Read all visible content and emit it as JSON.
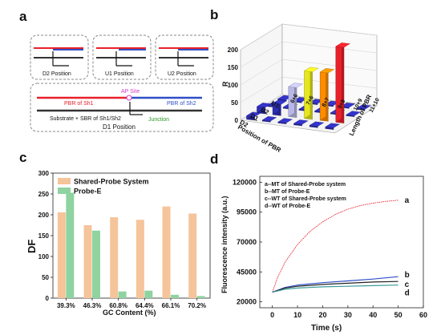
{
  "panel_labels": [
    "a",
    "b",
    "c",
    "d"
  ],
  "panel_a": {
    "boxes": [
      "D2 Position",
      "U1 Position",
      "U2 Position"
    ],
    "big_box": {
      "title": "D1 Position",
      "ap_site": "AP Site",
      "pbr_sh1": "PBR of Sh1",
      "pbr_sh2": "PBR of Sh2",
      "substrate": "Substrate + SBR of Sh1/Sh2",
      "junction": "Junction"
    }
  },
  "chart_data": [
    {
      "id": "b",
      "type": "bar",
      "title": "",
      "ylabel": "R",
      "xlabel": "Position of PBR",
      "zlabel": "Length of PBR",
      "x_categories": [
        "U1",
        "U2",
        "D1",
        "D2"
      ],
      "y_categories": [
        "11+10",
        "10+9",
        "9+8",
        "8+7",
        "7+6",
        "6+6"
      ],
      "z_ticks": [
        "0",
        "50",
        "100",
        "150",
        "200"
      ],
      "zlim": [
        0,
        200
      ],
      "bars": [
        {
          "x": "D1",
          "y": "11+10",
          "value": 215,
          "color": "#e8202a"
        },
        {
          "x": "D1",
          "y": "10+9",
          "value": 137,
          "color": "#ff8c00"
        },
        {
          "x": "D1",
          "y": "9+8",
          "value": 135,
          "color": "#e6e61e"
        },
        {
          "x": "D1",
          "y": "8+7",
          "value": 85,
          "color": "#b8b8e8"
        },
        {
          "x": "D1",
          "y": "7+6",
          "value": 32,
          "color": "#2d2db4"
        },
        {
          "x": "D1",
          "y": "6+6",
          "value": 18,
          "color": "#2d2db4"
        },
        {
          "x": "D2",
          "y": "11+10",
          "value": 5,
          "color": "#2d2db4"
        },
        {
          "x": "D2",
          "y": "10+9",
          "value": 4,
          "color": "#2d2db4"
        },
        {
          "x": "D2",
          "y": "9+8",
          "value": 4,
          "color": "#2d2db4"
        },
        {
          "x": "D2",
          "y": "8+7",
          "value": 3,
          "color": "#2d2db4"
        },
        {
          "x": "D2",
          "y": "7+6",
          "value": 3,
          "color": "#2d2db4"
        },
        {
          "x": "D2",
          "y": "6+6",
          "value": 10,
          "color": "#2d2db4"
        },
        {
          "x": "U2",
          "y": "11+10",
          "value": 3,
          "color": "#2d2db4"
        },
        {
          "x": "U2",
          "y": "10+9",
          "value": 3,
          "color": "#2d2db4"
        },
        {
          "x": "U2",
          "y": "9+8",
          "value": 3,
          "color": "#2d2db4"
        },
        {
          "x": "U2",
          "y": "8+7",
          "value": 3,
          "color": "#2d2db4"
        },
        {
          "x": "U2",
          "y": "7+6",
          "value": 3,
          "color": "#2d2db4"
        },
        {
          "x": "U2",
          "y": "6+6",
          "value": 3,
          "color": "#2d2db4"
        },
        {
          "x": "U1",
          "y": "11+10",
          "value": 3,
          "color": "#2d2db4"
        },
        {
          "x": "U1",
          "y": "10+9",
          "value": 3,
          "color": "#2d2db4"
        },
        {
          "x": "U1",
          "y": "9+8",
          "value": 3,
          "color": "#2d2db4"
        },
        {
          "x": "U1",
          "y": "8+7",
          "value": 3,
          "color": "#2d2db4"
        },
        {
          "x": "U1",
          "y": "7+6",
          "value": 3,
          "color": "#2d2db4"
        },
        {
          "x": "U1",
          "y": "6+6",
          "value": 3,
          "color": "#2d2db4"
        }
      ]
    },
    {
      "id": "c",
      "type": "bar",
      "title": "",
      "xlabel": "GC Content  (%)",
      "ylabel": "DF",
      "ylim": [
        0,
        300
      ],
      "yticks": [
        0,
        50,
        100,
        150,
        200,
        250,
        300
      ],
      "categories": [
        "39.3%",
        "46.3%",
        "60.8%",
        "64.4%",
        "66.1%",
        "70.2%"
      ],
      "legend_position": "top-left",
      "series": [
        {
          "name": "Shared-Probe System",
          "color": "#f5c49a",
          "values": [
            206,
            175,
            194,
            188,
            220,
            203
          ]
        },
        {
          "name": "Probe-E",
          "color": "#8ed3a0",
          "values": [
            253,
            162,
            16,
            18,
            8,
            5
          ]
        }
      ]
    },
    {
      "id": "d",
      "type": "line",
      "title": "",
      "xlabel": "Time (s)",
      "ylabel": "Fluorescence intensity (a.u.)",
      "xlim": [
        -5,
        60
      ],
      "ylim": [
        15000,
        125000
      ],
      "xticks": [
        0,
        10,
        20,
        30,
        40,
        50,
        60
      ],
      "yticks": [
        20000,
        45000,
        70000,
        95000,
        120000
      ],
      "ytick_labels": [
        "20000",
        "45000",
        "70000",
        "95000",
        "120000"
      ],
      "legend_position": "top-left",
      "series": [
        {
          "name": "a--MT of Shared-Probe system",
          "end_label": "a",
          "color": "#e8202a",
          "x": [
            0,
            2,
            5,
            10,
            15,
            20,
            25,
            30,
            35,
            40,
            45,
            50
          ],
          "y": [
            28000,
            40000,
            53000,
            68000,
            79000,
            87000,
            93000,
            97500,
            100500,
            102500,
            104000,
            105000
          ]
        },
        {
          "name": "b--MT of Probe-E",
          "end_label": "b",
          "color": "#2f4fc8",
          "x": [
            0,
            5,
            10,
            20,
            30,
            40,
            50
          ],
          "y": [
            28000,
            32000,
            34000,
            36000,
            37500,
            39000,
            41000
          ]
        },
        {
          "name": "c--WT of Shared-Probe system",
          "end_label": "c",
          "color": "#222222",
          "x": [
            0,
            5,
            10,
            20,
            30,
            40,
            50
          ],
          "y": [
            28000,
            31500,
            33000,
            34500,
            35500,
            36500,
            37000
          ]
        },
        {
          "name": "d--WT of Probe-E",
          "end_label": "d",
          "color": "#3a9a9a",
          "x": [
            0,
            5,
            10,
            20,
            30,
            40,
            50
          ],
          "y": [
            28000,
            30500,
            31500,
            32500,
            33000,
            33500,
            34000
          ]
        }
      ]
    }
  ]
}
